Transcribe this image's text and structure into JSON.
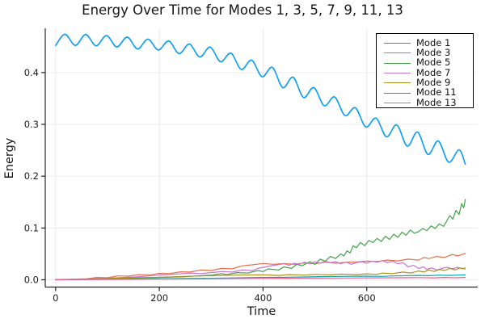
{
  "chart_data": {
    "type": "line",
    "title": "Energy Over Time for Modes 1, 3, 5, 7, 9, 11, 13",
    "xlabel": "Time",
    "ylabel": "Energy",
    "xlim": [
      -20,
      814
    ],
    "ylim": [
      -0.014,
      0.4855
    ],
    "xticks": {
      "values": [
        0,
        200,
        400,
        600
      ],
      "labels": [
        "0",
        "200",
        "400",
        "600"
      ]
    },
    "yticks": {
      "values": [
        0,
        0.1,
        0.2,
        0.3,
        0.4
      ],
      "labels": [
        "0.0",
        "0.1",
        "0.2",
        "0.3",
        "0.4"
      ]
    },
    "grid": true,
    "legend_position": "top-right",
    "axis_color": "#262626",
    "grid_color": "#e9e9e9",
    "series": [
      {
        "name": "Mode 1",
        "color": "#0B9CF5",
        "smooth": true,
        "points": [
          [
            0,
            0.4525
          ],
          [
            18,
            0.474
          ],
          [
            38,
            0.4525
          ],
          [
            58,
            0.4735
          ],
          [
            78,
            0.4515
          ],
          [
            98,
            0.4715
          ],
          [
            118,
            0.4495
          ],
          [
            138,
            0.4685
          ],
          [
            158,
            0.4455
          ],
          [
            178,
            0.4645
          ],
          [
            198,
            0.4435
          ],
          [
            218,
            0.461
          ],
          [
            238,
            0.4365
          ],
          [
            258,
            0.455
          ],
          [
            278,
            0.43
          ],
          [
            298,
            0.449
          ],
          [
            318,
            0.421
          ],
          [
            338,
            0.4375
          ],
          [
            358,
            0.406
          ],
          [
            378,
            0.424
          ],
          [
            398,
            0.392
          ],
          [
            418,
            0.41
          ],
          [
            438,
            0.371
          ],
          [
            458,
            0.391
          ],
          [
            478,
            0.352
          ],
          [
            498,
            0.371
          ],
          [
            518,
            0.336
          ],
          [
            538,
            0.353
          ],
          [
            558,
            0.317
          ],
          [
            578,
            0.332
          ],
          [
            598,
            0.295
          ],
          [
            618,
            0.312
          ],
          [
            638,
            0.276
          ],
          [
            658,
            0.299
          ],
          [
            678,
            0.258
          ],
          [
            698,
            0.285
          ],
          [
            718,
            0.242
          ],
          [
            738,
            0.268
          ],
          [
            758,
            0.227
          ],
          [
            778,
            0.251
          ],
          [
            790,
            0.223
          ]
        ]
      },
      {
        "name": "Mode 3",
        "color": "#E1714D",
        "smooth": false,
        "points": [
          [
            0,
            0.0005
          ],
          [
            30,
            0.001
          ],
          [
            60,
            0.002
          ],
          [
            80,
            0.0045
          ],
          [
            100,
            0.004
          ],
          [
            120,
            0.0075
          ],
          [
            140,
            0.007
          ],
          [
            160,
            0.01
          ],
          [
            180,
            0.009
          ],
          [
            200,
            0.0125
          ],
          [
            220,
            0.012
          ],
          [
            240,
            0.0155
          ],
          [
            260,
            0.015
          ],
          [
            280,
            0.019
          ],
          [
            300,
            0.018
          ],
          [
            320,
            0.022
          ],
          [
            340,
            0.021
          ],
          [
            360,
            0.027
          ],
          [
            380,
            0.029
          ],
          [
            400,
            0.0315
          ],
          [
            420,
            0.03
          ],
          [
            440,
            0.0315
          ],
          [
            460,
            0.03
          ],
          [
            480,
            0.0325
          ],
          [
            500,
            0.031
          ],
          [
            520,
            0.034
          ],
          [
            540,
            0.032
          ],
          [
            560,
            0.034
          ],
          [
            580,
            0.0345
          ],
          [
            600,
            0.036
          ],
          [
            620,
            0.0355
          ],
          [
            640,
            0.038
          ],
          [
            660,
            0.0365
          ],
          [
            680,
            0.04
          ],
          [
            700,
            0.038
          ],
          [
            710,
            0.043
          ],
          [
            720,
            0.041
          ],
          [
            735,
            0.045
          ],
          [
            750,
            0.043
          ],
          [
            765,
            0.049
          ],
          [
            775,
            0.046
          ],
          [
            790,
            0.051
          ]
        ]
      },
      {
        "name": "Mode 5",
        "color": "#3EA346",
        "smooth": false,
        "points": [
          [
            0,
            0.0002
          ],
          [
            50,
            0.001
          ],
          [
            100,
            0.002
          ],
          [
            150,
            0.003
          ],
          [
            200,
            0.0045
          ],
          [
            250,
            0.006
          ],
          [
            280,
            0.008
          ],
          [
            300,
            0.009
          ],
          [
            320,
            0.012
          ],
          [
            330,
            0.01
          ],
          [
            350,
            0.014
          ],
          [
            370,
            0.013
          ],
          [
            390,
            0.018
          ],
          [
            400,
            0.016
          ],
          [
            410,
            0.021
          ],
          [
            430,
            0.019
          ],
          [
            440,
            0.025
          ],
          [
            455,
            0.022
          ],
          [
            465,
            0.03
          ],
          [
            475,
            0.027
          ],
          [
            490,
            0.035
          ],
          [
            500,
            0.03
          ],
          [
            510,
            0.04
          ],
          [
            520,
            0.036
          ],
          [
            530,
            0.045
          ],
          [
            540,
            0.041
          ],
          [
            550,
            0.05
          ],
          [
            556,
            0.046
          ],
          [
            562,
            0.056
          ],
          [
            568,
            0.052
          ],
          [
            574,
            0.066
          ],
          [
            580,
            0.062
          ],
          [
            588,
            0.072
          ],
          [
            596,
            0.066
          ],
          [
            604,
            0.076
          ],
          [
            612,
            0.072
          ],
          [
            620,
            0.08
          ],
          [
            628,
            0.074
          ],
          [
            636,
            0.084
          ],
          [
            644,
            0.078
          ],
          [
            652,
            0.088
          ],
          [
            660,
            0.082
          ],
          [
            668,
            0.092
          ],
          [
            676,
            0.086
          ],
          [
            684,
            0.096
          ],
          [
            692,
            0.09
          ],
          [
            700,
            0.093
          ],
          [
            708,
            0.099
          ],
          [
            716,
            0.095
          ],
          [
            724,
            0.104
          ],
          [
            732,
            0.099
          ],
          [
            740,
            0.108
          ],
          [
            748,
            0.103
          ],
          [
            754,
            0.113
          ],
          [
            760,
            0.124
          ],
          [
            766,
            0.117
          ],
          [
            772,
            0.134
          ],
          [
            778,
            0.126
          ],
          [
            783,
            0.147
          ],
          [
            787,
            0.139
          ],
          [
            790,
            0.155
          ]
        ]
      },
      {
        "name": "Mode 7",
        "color": "#C873D2",
        "smooth": false,
        "points": [
          [
            0,
            0.0002
          ],
          [
            40,
            0.001
          ],
          [
            80,
            0.002
          ],
          [
            120,
            0.004
          ],
          [
            160,
            0.006
          ],
          [
            200,
            0.009
          ],
          [
            230,
            0.011
          ],
          [
            260,
            0.013
          ],
          [
            280,
            0.012
          ],
          [
            300,
            0.014
          ],
          [
            320,
            0.016
          ],
          [
            340,
            0.015
          ],
          [
            360,
            0.019
          ],
          [
            380,
            0.018
          ],
          [
            390,
            0.022
          ],
          [
            400,
            0.024
          ],
          [
            420,
            0.028
          ],
          [
            440,
            0.031
          ],
          [
            450,
            0.028
          ],
          [
            460,
            0.032
          ],
          [
            470,
            0.03
          ],
          [
            480,
            0.034
          ],
          [
            490,
            0.031
          ],
          [
            500,
            0.035
          ],
          [
            510,
            0.032
          ],
          [
            520,
            0.036
          ],
          [
            530,
            0.033
          ],
          [
            540,
            0.035
          ],
          [
            550,
            0.031
          ],
          [
            560,
            0.034
          ],
          [
            570,
            0.03
          ],
          [
            580,
            0.033
          ],
          [
            590,
            0.035
          ],
          [
            600,
            0.032
          ],
          [
            610,
            0.036
          ],
          [
            620,
            0.034
          ],
          [
            630,
            0.037
          ],
          [
            640,
            0.033
          ],
          [
            650,
            0.036
          ],
          [
            660,
            0.031
          ],
          [
            670,
            0.033
          ],
          [
            680,
            0.025
          ],
          [
            690,
            0.028
          ],
          [
            700,
            0.022
          ],
          [
            710,
            0.025
          ],
          [
            715,
            0.02
          ],
          [
            725,
            0.023
          ],
          [
            735,
            0.019
          ],
          [
            745,
            0.022
          ],
          [
            755,
            0.024
          ],
          [
            765,
            0.021
          ],
          [
            775,
            0.024
          ],
          [
            785,
            0.021
          ],
          [
            790,
            0.023
          ]
        ]
      },
      {
        "name": "Mode 9",
        "color": "#AD8F1F",
        "smooth": false,
        "points": [
          [
            0,
            0.0002
          ],
          [
            50,
            0.001
          ],
          [
            100,
            0.0025
          ],
          [
            150,
            0.004
          ],
          [
            200,
            0.005
          ],
          [
            250,
            0.0065
          ],
          [
            300,
            0.008
          ],
          [
            350,
            0.009
          ],
          [
            400,
            0.0095
          ],
          [
            430,
            0.0085
          ],
          [
            450,
            0.01
          ],
          [
            480,
            0.009
          ],
          [
            500,
            0.0105
          ],
          [
            530,
            0.0095
          ],
          [
            550,
            0.011
          ],
          [
            580,
            0.01
          ],
          [
            600,
            0.0115
          ],
          [
            620,
            0.0105
          ],
          [
            630,
            0.013
          ],
          [
            650,
            0.012
          ],
          [
            670,
            0.015
          ],
          [
            685,
            0.013
          ],
          [
            700,
            0.017
          ],
          [
            710,
            0.015
          ],
          [
            720,
            0.019
          ],
          [
            730,
            0.016
          ],
          [
            740,
            0.02
          ],
          [
            750,
            0.018
          ],
          [
            760,
            0.022
          ],
          [
            770,
            0.019
          ],
          [
            780,
            0.023
          ],
          [
            790,
            0.021
          ]
        ]
      },
      {
        "name": "Mode 11",
        "color": "#00A9B0",
        "smooth": false,
        "points": [
          [
            0,
            0.0001
          ],
          [
            100,
            0.001
          ],
          [
            200,
            0.002
          ],
          [
            300,
            0.003
          ],
          [
            400,
            0.0045
          ],
          [
            450,
            0.005
          ],
          [
            500,
            0.006
          ],
          [
            550,
            0.0065
          ],
          [
            600,
            0.007
          ],
          [
            630,
            0.0065
          ],
          [
            650,
            0.0075
          ],
          [
            680,
            0.008
          ],
          [
            700,
            0.0085
          ],
          [
            720,
            0.008
          ],
          [
            740,
            0.009
          ],
          [
            760,
            0.0085
          ],
          [
            775,
            0.009
          ],
          [
            790,
            0.0095
          ]
        ]
      },
      {
        "name": "Mode 13",
        "color": "#EF6192",
        "smooth": false,
        "points": [
          [
            0,
            0.0001
          ],
          [
            100,
            0.0008
          ],
          [
            200,
            0.0015
          ],
          [
            300,
            0.002
          ],
          [
            400,
            0.0028
          ],
          [
            450,
            0.003
          ],
          [
            500,
            0.0033
          ],
          [
            550,
            0.0035
          ],
          [
            600,
            0.0038
          ],
          [
            650,
            0.004
          ],
          [
            700,
            0.0042
          ],
          [
            730,
            0.0038
          ],
          [
            750,
            0.0045
          ],
          [
            770,
            0.004
          ],
          [
            790,
            0.0045
          ]
        ]
      }
    ]
  }
}
